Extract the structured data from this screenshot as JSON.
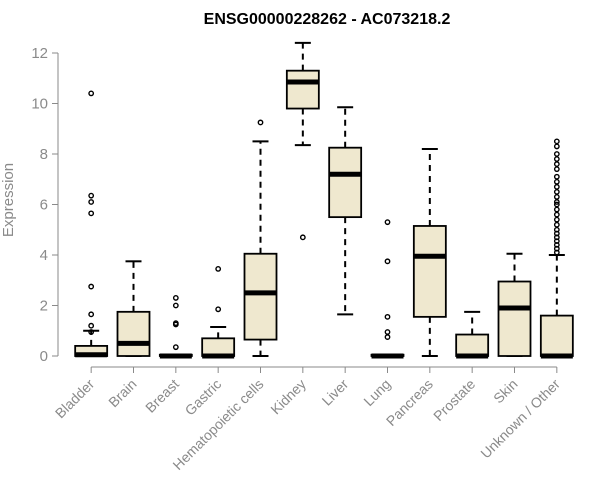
{
  "chart_data": {
    "type": "boxplot",
    "title": "ENSG00000228262 - AC073218.2",
    "ylabel": "Expression",
    "ylim": [
      0,
      12
    ],
    "yticks": [
      0,
      2,
      4,
      6,
      8,
      10,
      12
    ],
    "grid": false,
    "legend": "none",
    "box_fill": "#efe8cf",
    "median_color": "#000000",
    "categories": [
      "Bladder",
      "Brain",
      "Breast",
      "Gastric",
      "Hematopoietic cells",
      "Kidney",
      "Liver",
      "Lung",
      "Pancreas",
      "Prostate",
      "Skin",
      "Unknown / Other"
    ],
    "boxes": [
      {
        "q1": 0.0,
        "median": 0.05,
        "q3": 0.4,
        "whisker_low": 0.0,
        "whisker_high": 1.0,
        "outliers": [
          10.4,
          6.35,
          6.1,
          5.65,
          2.75,
          1.65,
          1.2,
          0.95
        ]
      },
      {
        "q1": 0.0,
        "median": 0.5,
        "q3": 1.75,
        "whisker_low": 0.0,
        "whisker_high": 3.75,
        "outliers": []
      },
      {
        "q1": 0.0,
        "median": 0.0,
        "q3": 0.05,
        "whisker_low": 0.0,
        "whisker_high": 0.05,
        "outliers": [
          2.3,
          2.0,
          1.3,
          1.25,
          0.35
        ]
      },
      {
        "q1": 0.0,
        "median": 0.0,
        "q3": 0.7,
        "whisker_low": 0.0,
        "whisker_high": 1.15,
        "outliers": [
          3.45,
          1.85
        ]
      },
      {
        "q1": 0.65,
        "median": 2.5,
        "q3": 4.05,
        "whisker_low": 0.0,
        "whisker_high": 8.5,
        "outliers": [
          9.25
        ]
      },
      {
        "q1": 9.8,
        "median": 10.85,
        "q3": 11.3,
        "whisker_low": 8.35,
        "whisker_high": 12.4,
        "outliers": [
          4.7
        ]
      },
      {
        "q1": 5.5,
        "median": 7.2,
        "q3": 8.25,
        "whisker_low": 1.65,
        "whisker_high": 9.85,
        "outliers": []
      },
      {
        "q1": 0.0,
        "median": 0.0,
        "q3": 0.05,
        "whisker_low": 0.0,
        "whisker_high": 0.05,
        "outliers": [
          5.3,
          3.75,
          1.55,
          0.95,
          0.75
        ]
      },
      {
        "q1": 1.55,
        "median": 3.95,
        "q3": 5.15,
        "whisker_low": 0.0,
        "whisker_high": 8.2,
        "outliers": []
      },
      {
        "q1": 0.0,
        "median": 0.0,
        "q3": 0.85,
        "whisker_low": 0.0,
        "whisker_high": 1.75,
        "outliers": []
      },
      {
        "q1": 0.0,
        "median": 1.9,
        "q3": 2.95,
        "whisker_low": 0.0,
        "whisker_high": 4.05,
        "outliers": []
      },
      {
        "q1": 0.0,
        "median": 0.0,
        "q3": 1.6,
        "whisker_low": 0.0,
        "whisker_high": 4.0,
        "outliers": [
          8.5,
          8.3,
          8.0,
          7.8,
          7.6,
          7.4,
          7.1,
          6.9,
          6.7,
          6.5,
          6.3,
          6.1,
          6.0,
          5.8,
          5.6,
          5.4,
          5.2,
          5.0,
          4.85,
          4.7,
          4.55,
          4.4,
          4.25,
          4.1
        ]
      }
    ]
  }
}
